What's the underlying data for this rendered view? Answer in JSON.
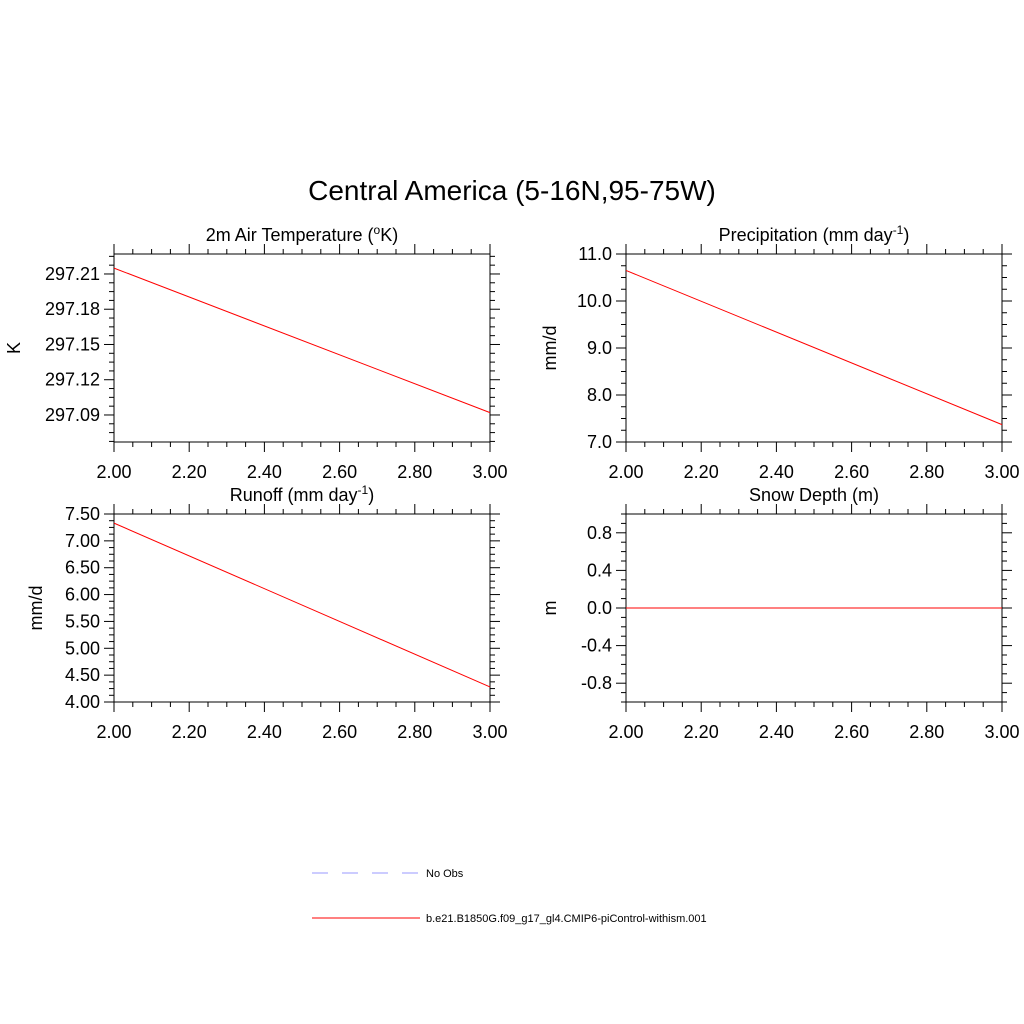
{
  "figure_title": "Central America (5-16N,95-75W)",
  "colors": {
    "model": "#ff0000",
    "obs": "#9999ff"
  },
  "legend": [
    {
      "label": "No Obs",
      "style": "dashed",
      "color": "#9999ff"
    },
    {
      "label": "b.e21.B1850G.f09_g17_gl4.CMIP6-piControl-withism.001",
      "style": "solid",
      "color": "#ff0000"
    }
  ],
  "chart_data": [
    {
      "type": "line",
      "title": "2m Air Temperature (",
      "title_sup": "o",
      "title_after": "K)",
      "ylabel": "K",
      "xlabel": "",
      "xlim": [
        2.0,
        3.0
      ],
      "ylim": [
        297.067,
        297.227
      ],
      "xticks": [
        "2.00",
        "2.20",
        "2.40",
        "2.60",
        "2.80",
        "3.00"
      ],
      "yticks": [
        "297.09",
        "297.12",
        "297.15",
        "297.18",
        "297.21"
      ],
      "series": [
        {
          "name": "b.e21.B1850G.f09_g17_gl4.CMIP6-piControl-withism.001",
          "x": [
            2.0,
            3.0
          ],
          "y": [
            297.215,
            297.092
          ]
        }
      ]
    },
    {
      "type": "line",
      "title": "Precipitation (mm day",
      "title_sup": "-1",
      "title_after": ")",
      "ylabel": "mm/d",
      "xlabel": "",
      "xlim": [
        2.0,
        3.0
      ],
      "ylim": [
        7.0,
        11.0
      ],
      "xticks": [
        "2.00",
        "2.20",
        "2.40",
        "2.60",
        "2.80",
        "3.00"
      ],
      "yticks": [
        "7.0",
        "8.0",
        "9.0",
        "10.0",
        "11.0"
      ],
      "series": [
        {
          "name": "b.e21.B1850G.f09_g17_gl4.CMIP6-piControl-withism.001",
          "x": [
            2.0,
            3.0
          ],
          "y": [
            10.65,
            7.37
          ]
        }
      ]
    },
    {
      "type": "line",
      "title": "Runoff (mm day",
      "title_sup": "-1",
      "title_after": ")",
      "ylabel": "mm/d",
      "xlabel": "",
      "xlim": [
        2.0,
        3.0
      ],
      "ylim": [
        4.0,
        7.5
      ],
      "xticks": [
        "2.00",
        "2.20",
        "2.40",
        "2.60",
        "2.80",
        "3.00"
      ],
      "yticks": [
        "4.00",
        "4.50",
        "5.00",
        "5.50",
        "6.00",
        "6.50",
        "7.00",
        "7.50"
      ],
      "series": [
        {
          "name": "b.e21.B1850G.f09_g17_gl4.CMIP6-piControl-withism.001",
          "x": [
            2.0,
            3.0
          ],
          "y": [
            7.33,
            4.28
          ]
        }
      ]
    },
    {
      "type": "line",
      "title": "Snow Depth (m)",
      "title_sup": "",
      "title_after": "",
      "ylabel": "m",
      "xlabel": "",
      "xlim": [
        2.0,
        3.0
      ],
      "ylim": [
        -1.0,
        1.0
      ],
      "xticks": [
        "2.00",
        "2.20",
        "2.40",
        "2.60",
        "2.80",
        "3.00"
      ],
      "yticks": [
        "-0.8",
        "-0.4",
        "0.0",
        "0.4",
        "0.8"
      ],
      "series": [
        {
          "name": "b.e21.B1850G.f09_g17_gl4.CMIP6-piControl-withism.001",
          "x": [
            2.0,
            3.0
          ],
          "y": [
            0.0,
            0.0
          ]
        }
      ]
    }
  ]
}
